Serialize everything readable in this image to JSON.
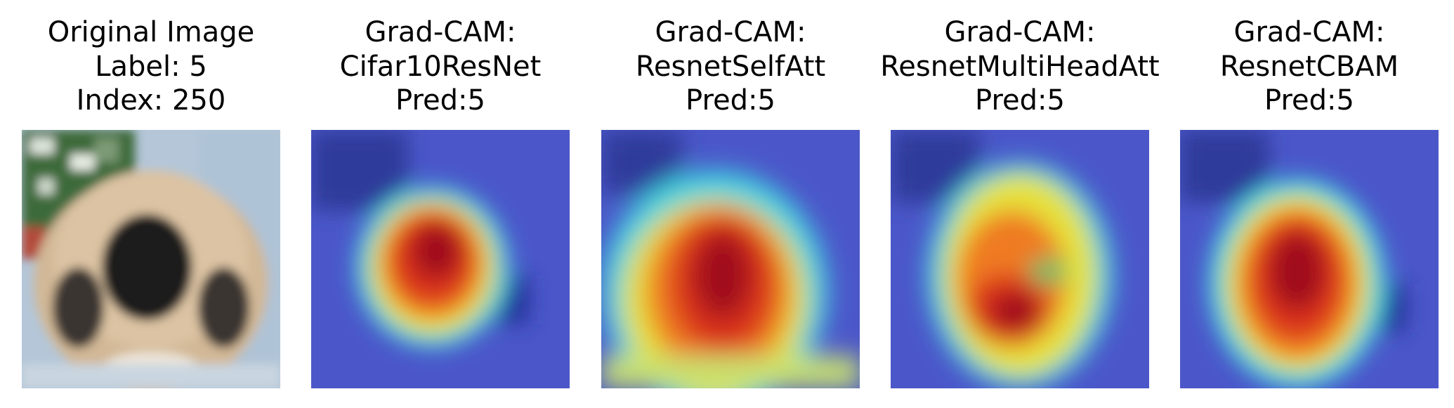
{
  "panels": [
    {
      "id": "original",
      "title_lines": [
        "Original Image",
        "Label: 5",
        "Index: 250"
      ],
      "kind": "photo"
    },
    {
      "id": "cifar10resnet",
      "title_lines": [
        "Grad-CAM:",
        "Cifar10ResNet",
        "Pred:5"
      ],
      "kind": "heatmap"
    },
    {
      "id": "resnetselfatt",
      "title_lines": [
        "Grad-CAM:",
        "ResnetSelfAtt",
        "Pred:5"
      ],
      "kind": "heatmap"
    },
    {
      "id": "resnetmultiheadatt",
      "title_lines": [
        "Grad-CAM:",
        "ResnetMultiHeadAtt",
        "Pred:5"
      ],
      "kind": "heatmap"
    },
    {
      "id": "resnetcbam",
      "title_lines": [
        "Grad-CAM:",
        "ResnetCBAM",
        "Pred:5"
      ],
      "kind": "heatmap"
    }
  ],
  "colors": {
    "heat_low": "#3b46c8",
    "heat_cool": "#3fd3e0",
    "heat_mid": "#e6e23a",
    "heat_warm": "#ef7a22",
    "heat_high": "#a0101a",
    "fur": "#d2b896",
    "face_dark": "#1a1a1a",
    "foliage": "#3d6b3a",
    "background_sky": "#b4c6d8"
  }
}
